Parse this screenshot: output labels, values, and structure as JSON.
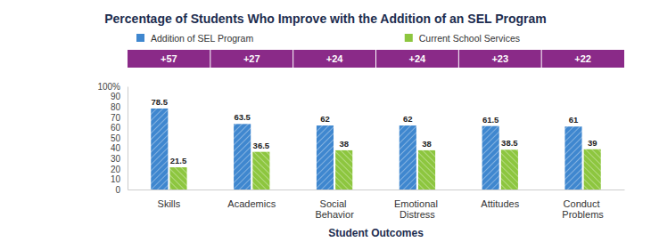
{
  "chart_data": {
    "type": "bar",
    "title": "Percentage of Students Who Improve with the Addition of an SEL Program",
    "x_label": "Student Outcomes",
    "categories": [
      "Skills",
      "Academics",
      "Social Behavior",
      "Emotional Distress",
      "Attitudes",
      "Conduct Problems"
    ],
    "series": [
      {
        "name": "Addition of SEL Program",
        "color": "#3f87cf",
        "values": [
          78.5,
          63.5,
          62,
          62,
          61.5,
          61
        ]
      },
      {
        "name": "Current School Services",
        "color": "#8dc63f",
        "values": [
          21.5,
          36.5,
          38,
          38,
          38.5,
          39
        ]
      }
    ],
    "annotations": [
      "+57",
      "+27",
      "+24",
      "+24",
      "+23",
      "+22"
    ],
    "ylim": [
      0,
      100
    ],
    "yticks": [
      0,
      10,
      20,
      30,
      40,
      50,
      60,
      70,
      80,
      90,
      {
        "value": 100,
        "label": "100%"
      }
    ],
    "grid": false,
    "legend": "top",
    "data_labels": true
  }
}
